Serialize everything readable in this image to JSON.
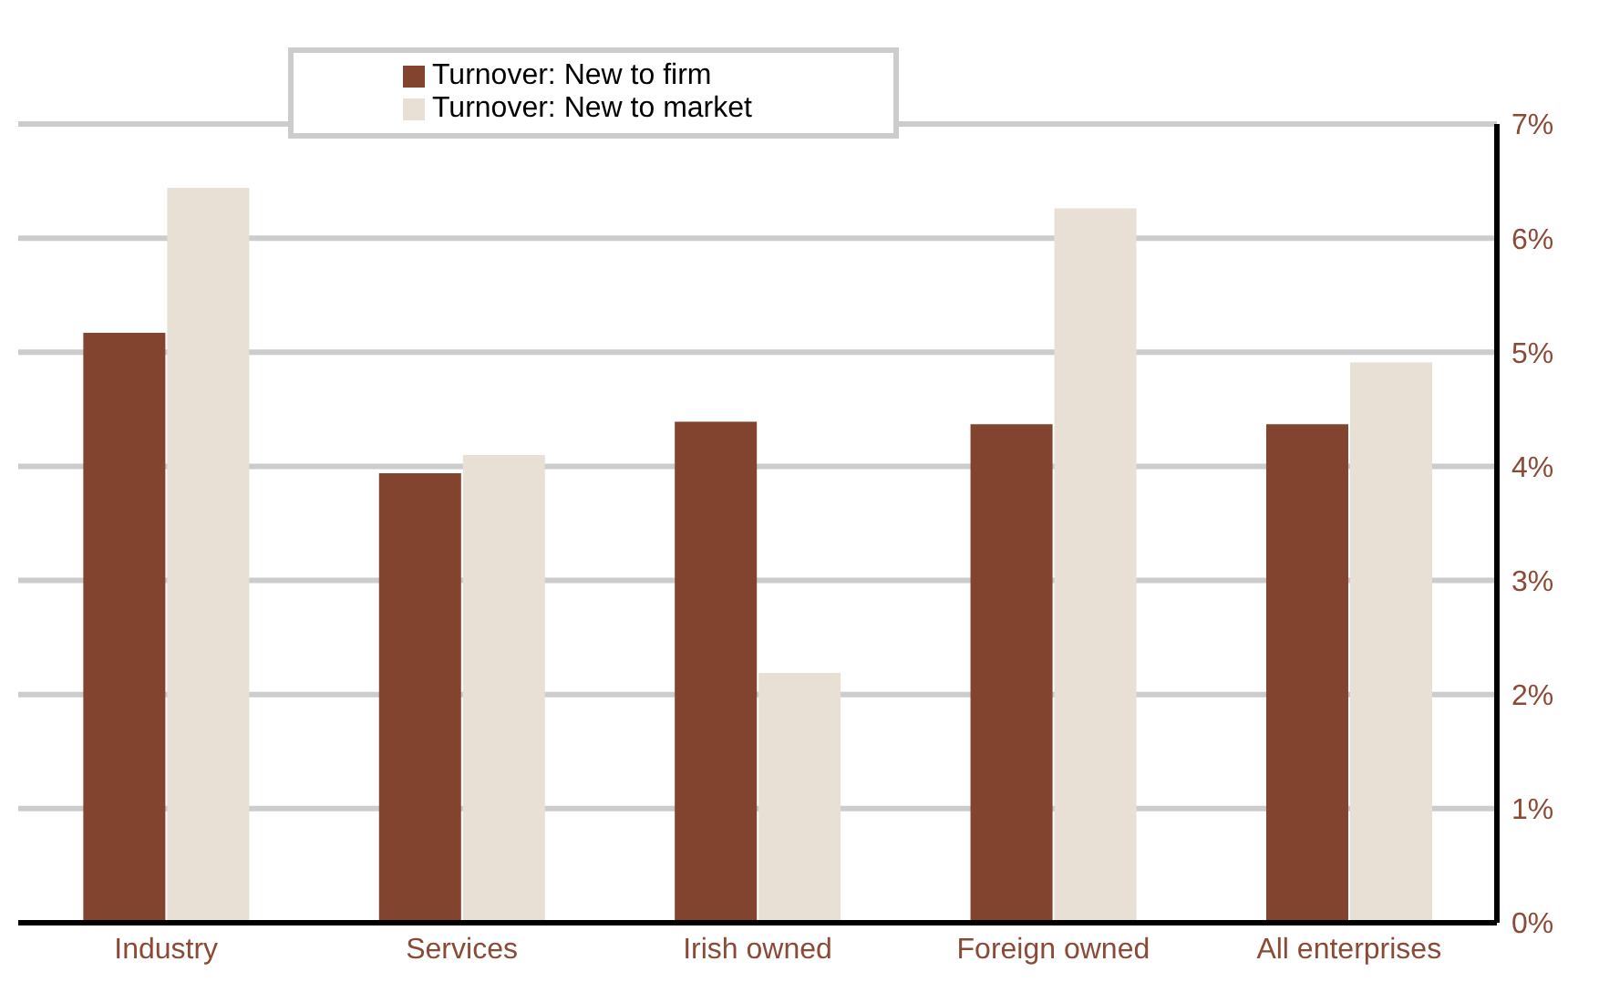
{
  "chart_data": {
    "type": "bar",
    "categories": [
      "Industry",
      "Services",
      "Irish owned",
      "Foreign owned",
      "All enterprises"
    ],
    "series": [
      {
        "name": "Turnover:  New to firm",
        "color": "#82442f",
        "values": [
          5.17,
          3.94,
          4.39,
          4.37,
          4.37
        ]
      },
      {
        "name": "Turnover:  New to market",
        "color": "#e8dfd5",
        "values": [
          6.44,
          4.1,
          2.19,
          6.26,
          4.91
        ]
      }
    ],
    "ylim": [
      0,
      7
    ],
    "yticks": [
      {
        "value": 0,
        "label": "0%"
      },
      {
        "value": 1,
        "label": "1%"
      },
      {
        "value": 2,
        "label": "2%"
      },
      {
        "value": 3,
        "label": "3%"
      },
      {
        "value": 4,
        "label": "4%"
      },
      {
        "value": 5,
        "label": "5%"
      },
      {
        "value": 6,
        "label": "6%"
      },
      {
        "value": 7,
        "label": "7%"
      }
    ],
    "grid": "y",
    "legend": "top"
  }
}
